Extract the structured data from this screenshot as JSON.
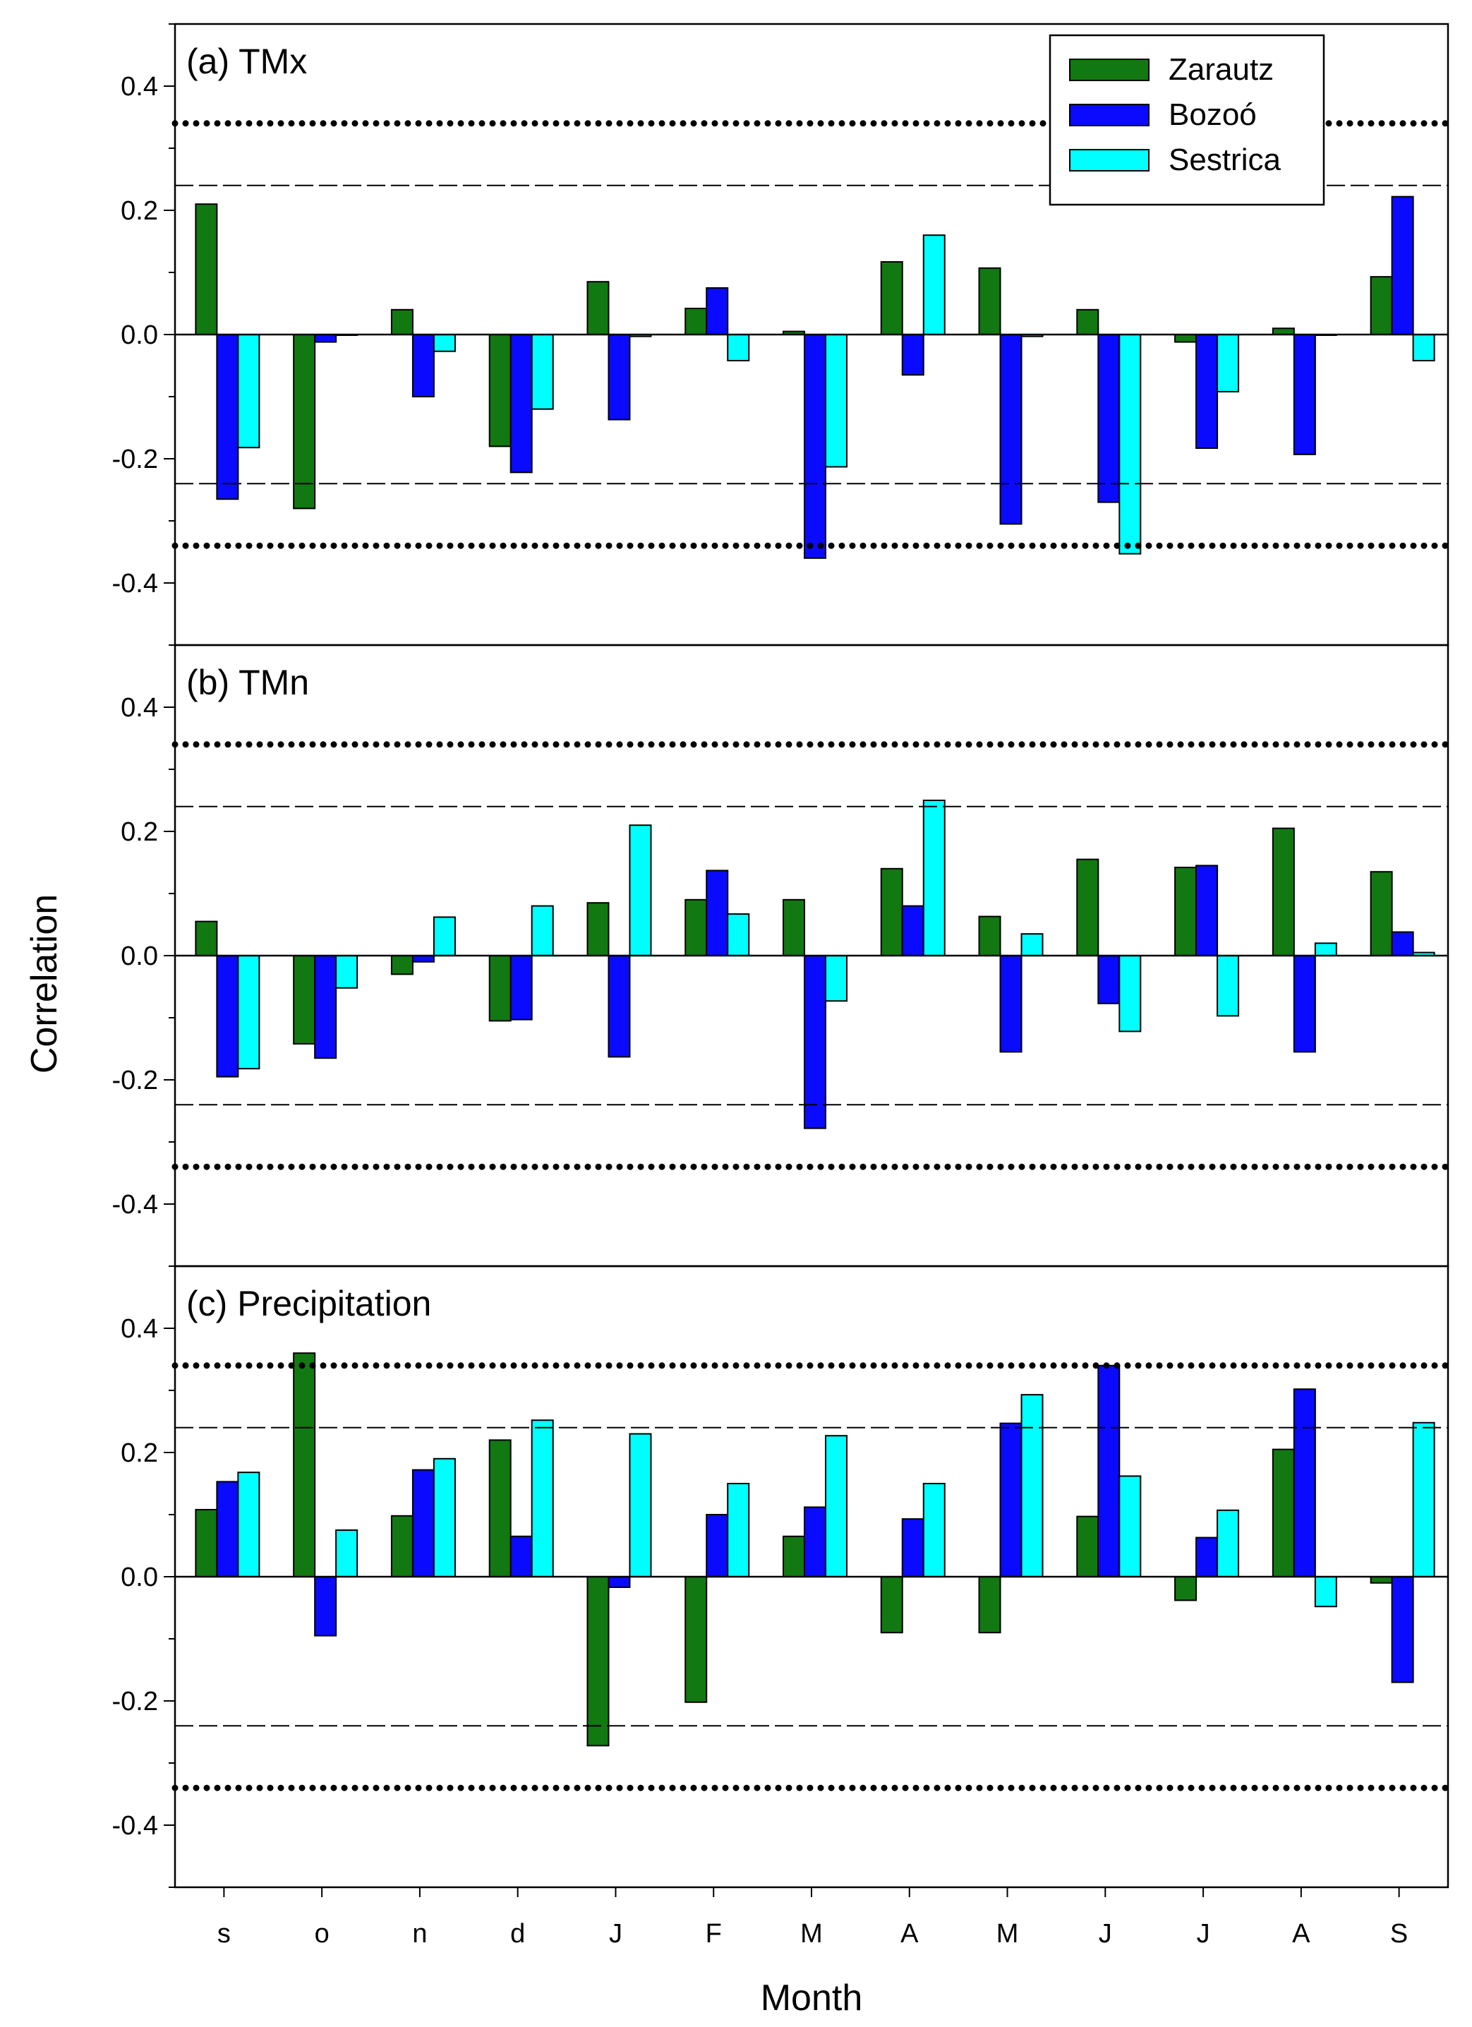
{
  "chart_data": {
    "type": "bar",
    "xlabel": "Month",
    "ylabel": "Correlation",
    "ylim": [
      -0.5,
      0.5
    ],
    "yticks": [
      -0.4,
      -0.2,
      0.0,
      0.2,
      0.4
    ],
    "ytick_labels": [
      "-0.4",
      "-0.2",
      "0.0",
      "0.2",
      "0.4"
    ],
    "categories": [
      "s",
      "o",
      "n",
      "d",
      "J",
      "F",
      "M",
      "A",
      "M",
      "J",
      "J",
      "A",
      "S"
    ],
    "significance_lines": {
      "dashed": 0.24,
      "dotted": 0.34
    },
    "legend": {
      "position": "top-right of panel (a)",
      "entries": [
        {
          "name": "Zarautz",
          "color": "#127812"
        },
        {
          "name": "Bozoó",
          "color": "#0a0aff"
        },
        {
          "name": "Sestrica",
          "color": "#00ffff"
        }
      ]
    },
    "panels": [
      {
        "title": "(a) TMx",
        "series": [
          {
            "name": "Zarautz",
            "values": [
              0.21,
              -0.28,
              0.04,
              -0.18,
              0.085,
              0.042,
              0.005,
              0.117,
              0.107,
              0.04,
              -0.012,
              0.01,
              0.093
            ]
          },
          {
            "name": "Bozoó",
            "values": [
              -0.265,
              -0.012,
              -0.1,
              -0.222,
              -0.137,
              0.075,
              -0.36,
              -0.065,
              -0.305,
              -0.27,
              -0.183,
              -0.193,
              0.222
            ]
          },
          {
            "name": "Sestrica",
            "values": [
              -0.182,
              0.0,
              -0.027,
              -0.12,
              -0.003,
              -0.042,
              -0.213,
              0.16,
              -0.003,
              -0.353,
              -0.092,
              0.0,
              -0.042
            ]
          }
        ]
      },
      {
        "title": "(b) TMn",
        "series": [
          {
            "name": "Zarautz",
            "values": [
              0.055,
              -0.142,
              -0.03,
              -0.105,
              0.085,
              0.09,
              0.09,
              0.14,
              0.063,
              0.155,
              0.142,
              0.205,
              0.135
            ]
          },
          {
            "name": "Bozoó",
            "values": [
              -0.195,
              -0.165,
              -0.01,
              -0.103,
              -0.163,
              0.137,
              -0.278,
              0.08,
              -0.155,
              -0.077,
              0.145,
              -0.155,
              0.038
            ]
          },
          {
            "name": "Sestrica",
            "values": [
              -0.182,
              -0.052,
              0.062,
              0.08,
              0.21,
              0.067,
              -0.073,
              0.25,
              0.035,
              -0.122,
              -0.097,
              0.02,
              0.005
            ]
          }
        ]
      },
      {
        "title": "(c) Precipitation",
        "series": [
          {
            "name": "Zarautz",
            "values": [
              0.108,
              0.36,
              0.098,
              0.22,
              -0.272,
              -0.202,
              0.065,
              -0.09,
              -0.09,
              0.097,
              -0.038,
              0.205,
              -0.01
            ]
          },
          {
            "name": "Bozoó",
            "values": [
              0.153,
              -0.095,
              0.172,
              0.065,
              -0.017,
              0.1,
              0.112,
              0.093,
              0.247,
              0.34,
              0.063,
              0.302,
              -0.17
            ]
          },
          {
            "name": "Sestrica",
            "values": [
              0.168,
              0.075,
              0.19,
              0.252,
              0.23,
              0.15,
              0.227,
              0.15,
              0.293,
              0.162,
              0.107,
              -0.048,
              0.248
            ]
          }
        ]
      }
    ]
  }
}
